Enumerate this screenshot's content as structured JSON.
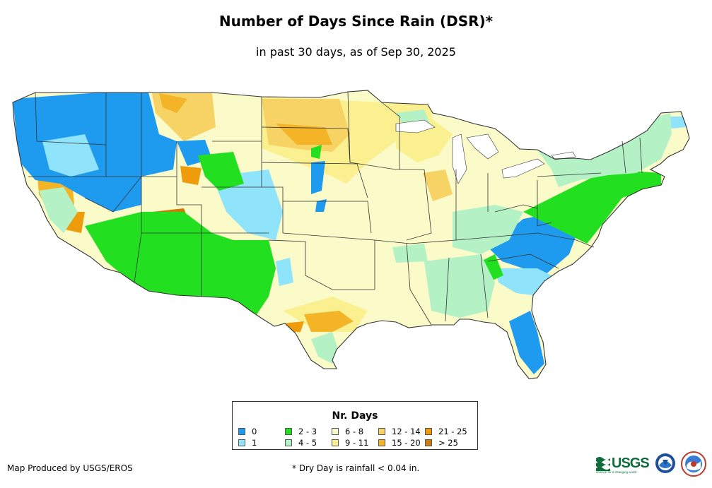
{
  "title": "Number of Days Since Rain (DSR)*",
  "subtitle": "in past 30 days, as of Sep 30, 2025",
  "legend": {
    "title": "Nr. Days",
    "items": [
      {
        "label": "0",
        "color": "#1e9bef"
      },
      {
        "label": "1",
        "color": "#8fe3fb"
      },
      {
        "label": "2 - 3",
        "color": "#22e01f"
      },
      {
        "label": "4 - 5",
        "color": "#b4f2c6"
      },
      {
        "label": "6 - 8",
        "color": "#fbfbc9"
      },
      {
        "label": "9 - 11",
        "color": "#faf08f"
      },
      {
        "label": "12 - 14",
        "color": "#f7d366"
      },
      {
        "label": "15 - 20",
        "color": "#f3b527"
      },
      {
        "label": "21 - 25",
        "color": "#ee9b0c"
      },
      {
        "label": "> 25",
        "color": "#cc7a08"
      }
    ]
  },
  "footer": {
    "credit": "Map Produced by USGS/EROS",
    "note": "* Dry Day is rainfall < 0.04 in."
  },
  "logos": {
    "usgs": "USGS",
    "usgs_tagline": "science for a changing world",
    "noaa": "NOAA",
    "nws": "National Weather Service"
  }
}
